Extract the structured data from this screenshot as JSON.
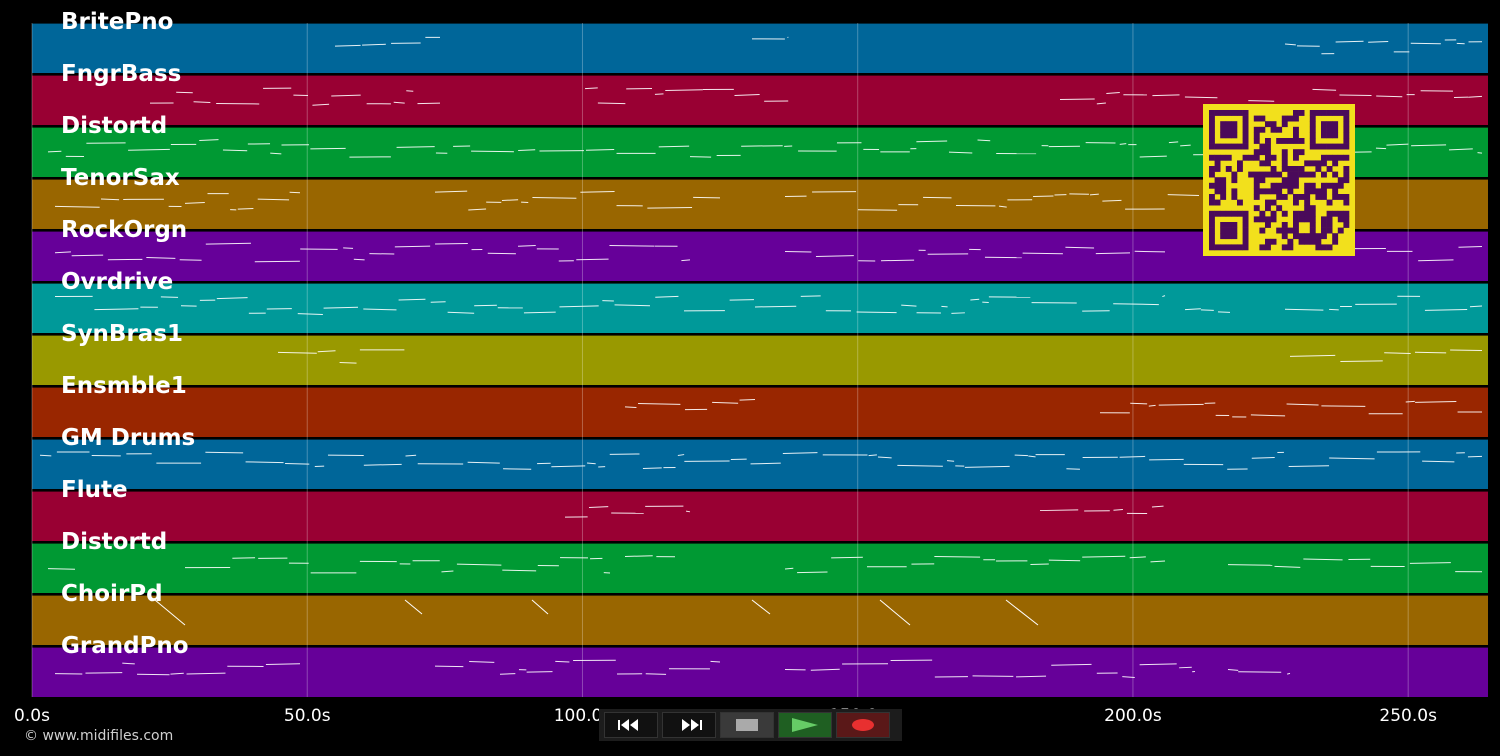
{
  "tracks": [
    {
      "name": "BritePno",
      "color": "#006699"
    },
    {
      "name": "FngrBass",
      "color": "#990033"
    },
    {
      "name": "Distortd",
      "color": "#009933"
    },
    {
      "name": "TenorSax",
      "color": "#996600"
    },
    {
      "name": "RockOrgn",
      "color": "#660099"
    },
    {
      "name": "Ovrdrive",
      "color": "#009999"
    },
    {
      "name": "SynBras1",
      "color": "#999900"
    },
    {
      "name": "Ensmble1",
      "color": "#992600"
    },
    {
      "name": "GM Drums",
      "color": "#006699"
    },
    {
      "name": "Flute",
      "color": "#990033"
    },
    {
      "name": "Distortd",
      "color": "#009933"
    },
    {
      "name": "ChoirPd",
      "color": "#996600"
    },
    {
      "name": "GrandPno",
      "color": "#660099"
    }
  ],
  "time_axis": {
    "unit_suffix": "s",
    "ticks": [
      "0.0s",
      "50.0s",
      "100.0s",
      "150.0s",
      "200.0s",
      "250.0s"
    ],
    "tick_values": [
      0,
      50,
      100,
      150,
      200,
      250
    ],
    "max_seconds": 264.5
  },
  "copyright": "© www.midifiles.com",
  "transport": {
    "rewind": "rewind-icon",
    "fast_forward": "fast-forward-icon",
    "stop": "stop-icon",
    "play": "play-icon",
    "record": "record-icon"
  },
  "qr_code": {
    "color": "#f2e01c",
    "dark": "#4a0a5a"
  }
}
